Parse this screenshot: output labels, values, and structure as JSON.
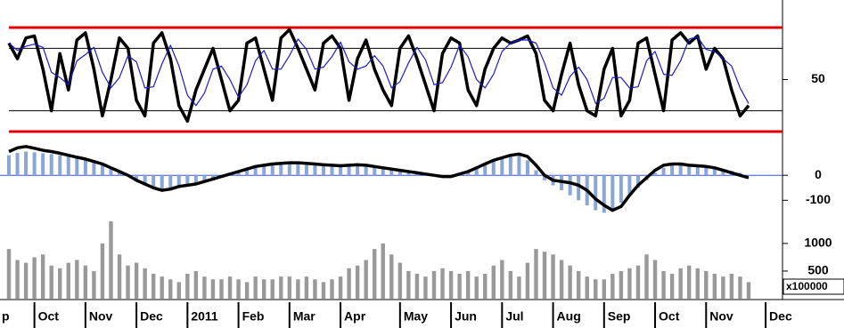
{
  "chart_data": [
    {
      "type": "line",
      "series": [
        {
          "color": "#000000",
          "values": [
            85,
            70,
            90,
            92,
            60,
            20,
            75,
            40,
            88,
            95,
            60,
            15,
            50,
            90,
            80,
            30,
            15,
            85,
            95,
            70,
            25,
            10,
            40,
            60,
            80,
            50,
            20,
            30,
            85,
            90,
            60,
            30,
            90,
            98,
            80,
            60,
            40,
            85,
            92,
            80,
            30,
            70,
            88,
            60,
            40,
            25,
            80,
            92,
            70,
            45,
            20,
            75,
            90,
            85,
            40,
            25,
            60,
            80,
            90,
            85,
            88,
            92,
            75,
            30,
            20,
            55,
            85,
            45,
            20,
            15,
            60,
            80,
            15,
            30,
            85,
            90,
            55,
            20,
            88,
            95,
            85,
            92,
            60,
            80,
            70,
            40,
            15,
            25,
            null,
            null,
            null
          ]
        },
        {
          "color": "#1a1acc",
          "values": [
            85,
            78,
            82,
            84,
            81,
            57,
            52,
            45,
            68,
            74,
            81,
            57,
            42,
            52,
            73,
            67,
            42,
            43,
            65,
            83,
            63,
            35,
            25,
            37,
            60,
            63,
            50,
            33,
            45,
            68,
            78,
            60,
            60,
            73,
            89,
            79,
            60,
            62,
            72,
            86,
            67,
            60,
            63,
            73,
            63,
            42,
            48,
            66,
            81,
            69,
            45,
            47,
            62,
            83,
            72,
            50,
            42,
            55,
            77,
            85,
            88,
            88,
            85,
            66,
            42,
            35,
            53,
            62,
            50,
            27,
            32,
            52,
            52,
            42,
            43,
            68,
            77,
            55,
            54,
            68,
            89,
            91,
            79,
            77,
            70,
            63,
            42,
            27,
            null,
            null,
            null
          ]
        }
      ],
      "ylim": [
        0,
        100
      ],
      "yticks": [
        50
      ],
      "reference_lines": [
        {
          "value": 100,
          "color": "#e00000"
        },
        {
          "value": 80,
          "color": "#000000"
        },
        {
          "value": 20,
          "color": "#000000"
        },
        {
          "value": 0,
          "color": "#e00000"
        }
      ]
    },
    {
      "type": "combo",
      "series": [
        {
          "type": "bar",
          "color": "#8aa6d6",
          "values": [
            80,
            90,
            95,
            92,
            88,
            85,
            80,
            75,
            70,
            62,
            50,
            40,
            25,
            10,
            -5,
            -25,
            -40,
            -55,
            -60,
            -50,
            -40,
            -35,
            -30,
            -20,
            -10,
            0,
            10,
            20,
            30,
            40,
            45,
            50,
            52,
            55,
            55,
            52,
            50,
            48,
            45,
            45,
            45,
            48,
            45,
            40,
            35,
            30,
            25,
            18,
            12,
            6,
            2,
            -2,
            0,
            10,
            20,
            35,
            50,
            62,
            72,
            82,
            80,
            60,
            20,
            -20,
            -40,
            -60,
            -80,
            -100,
            -120,
            -140,
            -150,
            -140,
            -110,
            -80,
            -50,
            -20,
            10,
            30,
            40,
            42,
            40,
            38,
            35,
            30,
            25,
            18,
            10,
            2,
            null,
            null,
            null
          ]
        },
        {
          "type": "line",
          "color": "#000000",
          "values": [
            95,
            110,
            115,
            108,
            100,
            95,
            88,
            80,
            72,
            65,
            55,
            45,
            30,
            15,
            0,
            -20,
            -35,
            -50,
            -60,
            -55,
            -45,
            -40,
            -35,
            -25,
            -15,
            -5,
            5,
            15,
            25,
            35,
            40,
            45,
            48,
            50,
            50,
            48,
            45,
            42,
            40,
            38,
            40,
            42,
            40,
            35,
            30,
            25,
            20,
            15,
            10,
            5,
            0,
            -5,
            -5,
            5,
            15,
            30,
            45,
            60,
            70,
            80,
            85,
            75,
            40,
            0,
            -20,
            -25,
            -30,
            -40,
            -60,
            -95,
            -120,
            -140,
            -125,
            -80,
            -40,
            -10,
            20,
            40,
            45,
            45,
            40,
            38,
            35,
            30,
            20,
            10,
            0,
            -10,
            null,
            null,
            null
          ]
        }
      ],
      "ylim": [
        -170,
        150
      ],
      "yticks": [
        -100,
        0
      ],
      "zero_line_color": "#3355cc"
    },
    {
      "type": "bar",
      "color": "#999999",
      "categories": [
        "p",
        null,
        null,
        "Oct",
        null,
        null,
        null,
        null,
        null,
        "Nov",
        null,
        null,
        null,
        null,
        null,
        "Dec",
        null,
        null,
        null,
        null,
        null,
        "2011",
        null,
        null,
        null,
        null,
        null,
        "Feb",
        null,
        null,
        null,
        null,
        null,
        "Mar",
        null,
        null,
        null,
        null,
        null,
        "Apr",
        null,
        null,
        null,
        null,
        null,
        null,
        "May",
        null,
        null,
        null,
        null,
        null,
        "Jun",
        null,
        null,
        null,
        null,
        null,
        "Jul",
        null,
        null,
        null,
        null,
        null,
        "Aug",
        null,
        null,
        null,
        null,
        null,
        "Sep",
        null,
        null,
        null,
        null,
        null,
        "Oct",
        null,
        null,
        null,
        null,
        null,
        "Nov",
        null,
        null,
        null,
        null,
        null,
        null,
        "Dec",
        null
      ],
      "values": [
        900,
        700,
        650,
        750,
        800,
        600,
        550,
        650,
        700,
        600,
        500,
        1000,
        1400,
        800,
        600,
        650,
        550,
        450,
        400,
        350,
        300,
        450,
        500,
        400,
        350,
        350,
        400,
        350,
        300,
        400,
        350,
        350,
        400,
        400,
        350,
        400,
        350,
        300,
        350,
        400,
        550,
        600,
        700,
        900,
        1000,
        800,
        650,
        500,
        450,
        400,
        500,
        550,
        500,
        450,
        500,
        400,
        450,
        600,
        700,
        500,
        400,
        650,
        900,
        850,
        800,
        700,
        600,
        500,
        400,
        350,
        350,
        450,
        500,
        550,
        600,
        800,
        700,
        500,
        450,
        550,
        600,
        550,
        500,
        450,
        400,
        450,
        400,
        300,
        null,
        null,
        null
      ],
      "ylim": [
        0,
        1400
      ],
      "yticks": [
        500,
        1000
      ],
      "ylabel": "x100000"
    }
  ]
}
